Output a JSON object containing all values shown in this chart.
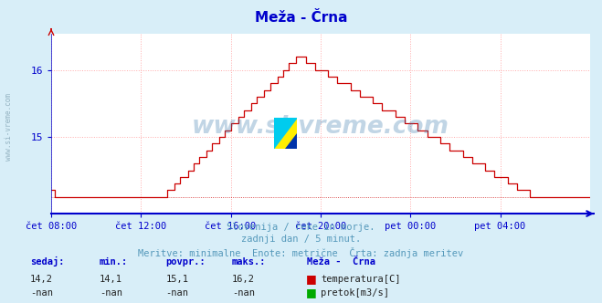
{
  "title": "Meža - Črna",
  "bg_color": "#d8eef8",
  "plot_bg_color": "#ffffff",
  "grid_color": "#ffaaaa",
  "line_color": "#cc0000",
  "axis_color": "#0000cc",
  "text_color": "#5599bb",
  "title_color": "#0000cc",
  "xlabel_ticks": [
    "čet 08:00",
    "čet 12:00",
    "čet 16:00",
    "čet 20:00",
    "pet 00:00",
    "pet 04:00"
  ],
  "yticks_labels": [
    "15",
    "16"
  ],
  "yticks_vals": [
    15.0,
    16.0
  ],
  "watermark": "www.si-vreme.com",
  "subtitle1": "Slovenija / reke in morje.",
  "subtitle2": "zadnji dan / 5 minut.",
  "subtitle3": "Meritve: minimalne  Enote: metrične  Črta: zadnja meritev",
  "legend_title": "Meža -  Črna",
  "legend_items": [
    {
      "label": "temperatura[C]",
      "color": "#cc0000"
    },
    {
      "label": "pretok[m3/s]",
      "color": "#00aa00"
    }
  ],
  "stats_headers": [
    "sedaj:",
    "min.:",
    "povpr.:",
    "maks.:"
  ],
  "stats_temp": [
    "14,2",
    "14,1",
    "15,1",
    "16,2"
  ],
  "stats_flow": [
    "-nan",
    "-nan",
    "-nan",
    "-nan"
  ],
  "left_label": "www.si-vreme.com",
  "ymin": 13.85,
  "ymax": 16.55,
  "n_points": 289
}
